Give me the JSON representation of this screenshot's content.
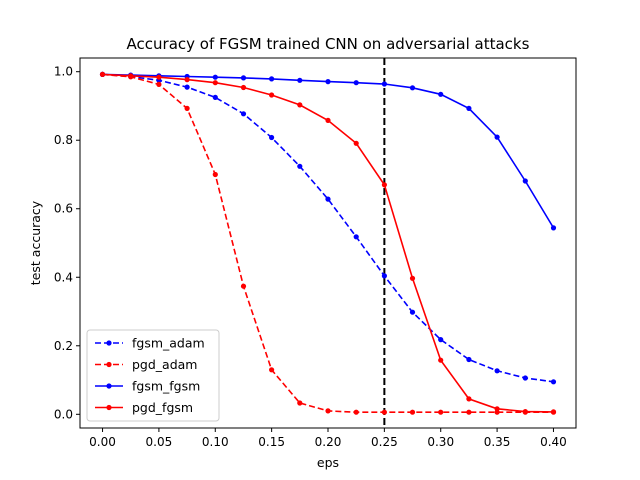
{
  "chart_data": {
    "type": "line",
    "title": "Accuracy of FGSM trained CNN on adversarial attacks",
    "xlabel": "eps",
    "ylabel": "test accuracy",
    "xlim": [
      -0.02,
      0.42
    ],
    "ylim": [
      -0.04,
      1.04
    ],
    "xticks": [
      "0.00",
      "0.05",
      "0.10",
      "0.15",
      "0.20",
      "0.25",
      "0.30",
      "0.35",
      "0.40"
    ],
    "yticks": [
      "0.0",
      "0.2",
      "0.4",
      "0.6",
      "0.8",
      "1.0"
    ],
    "legend_position": "lower-left",
    "vertical_line": {
      "x": 0.25,
      "style": "dashed",
      "color": "#000000"
    },
    "x": [
      0.0,
      0.025,
      0.05,
      0.075,
      0.1,
      0.125,
      0.15,
      0.175,
      0.2,
      0.225,
      0.25,
      0.275,
      0.3,
      0.325,
      0.35,
      0.375,
      0.4
    ],
    "series": [
      {
        "name": "fgsm_adam",
        "color": "#0000ff",
        "style": "dashed",
        "values": [
          0.992,
          0.986,
          0.975,
          0.955,
          0.925,
          0.877,
          0.808,
          0.724,
          0.628,
          0.518,
          0.404,
          0.298,
          0.218,
          0.16,
          0.127,
          0.106,
          0.095
        ]
      },
      {
        "name": "pgd_adam",
        "color": "#ff0000",
        "style": "dashed",
        "values": [
          0.992,
          0.985,
          0.963,
          0.893,
          0.7,
          0.374,
          0.13,
          0.033,
          0.01,
          0.006,
          0.006,
          0.006,
          0.006,
          0.006,
          0.006,
          0.006,
          0.006
        ]
      },
      {
        "name": "fgsm_fgsm",
        "color": "#0000ff",
        "style": "solid",
        "values": [
          0.992,
          0.99,
          0.988,
          0.986,
          0.984,
          0.982,
          0.979,
          0.975,
          0.971,
          0.968,
          0.964,
          0.953,
          0.934,
          0.893,
          0.809,
          0.681,
          0.544
        ]
      },
      {
        "name": "pgd_fgsm",
        "color": "#ff0000",
        "style": "solid",
        "values": [
          0.992,
          0.988,
          0.984,
          0.977,
          0.968,
          0.954,
          0.932,
          0.903,
          0.858,
          0.791,
          0.67,
          0.397,
          0.158,
          0.045,
          0.016,
          0.008,
          0.007
        ]
      }
    ]
  }
}
